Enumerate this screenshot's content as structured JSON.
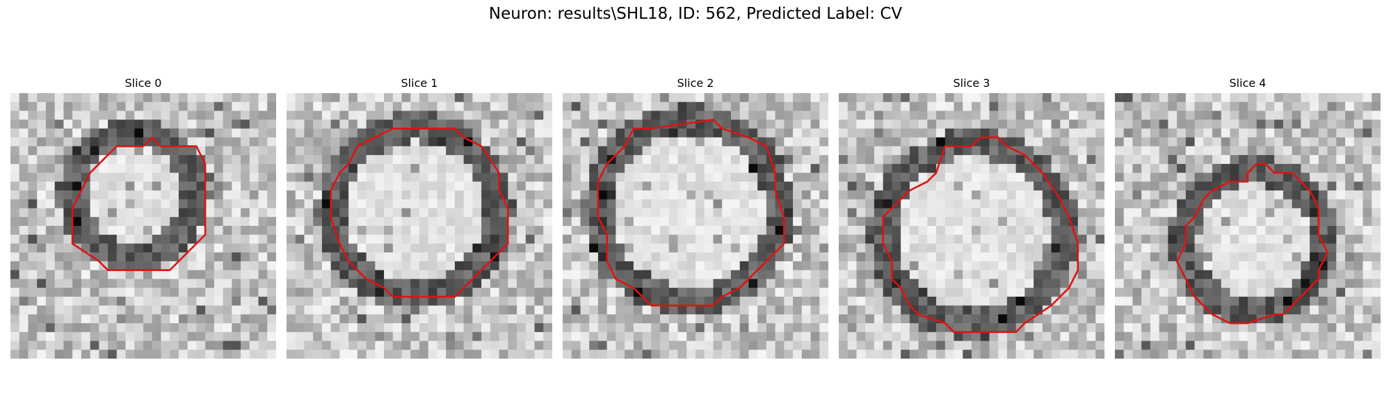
{
  "figure": {
    "title": "Neuron: results\\SHL18, ID: 562, Predicted Label: CV",
    "contour_color": "#e01212"
  },
  "panels": [
    {
      "title": "Slice 0",
      "seed": 11,
      "contour": [
        [
          16,
          5
        ],
        [
          17,
          6
        ],
        [
          21,
          6
        ],
        [
          22,
          8
        ],
        [
          22,
          16
        ],
        [
          21,
          17
        ],
        [
          18,
          20
        ],
        [
          11,
          20
        ],
        [
          10,
          19
        ],
        [
          7,
          17
        ],
        [
          7,
          13
        ],
        [
          8,
          11
        ],
        [
          9,
          9
        ],
        [
          10,
          8
        ],
        [
          11,
          7
        ],
        [
          12,
          6
        ],
        [
          15,
          6
        ]
      ]
    },
    {
      "title": "Slice 1",
      "seed": 23,
      "contour": [
        [
          14,
          4
        ],
        [
          19,
          4
        ],
        [
          20,
          5
        ],
        [
          22,
          6
        ],
        [
          24,
          9
        ],
        [
          24,
          11
        ],
        [
          25,
          13
        ],
        [
          25,
          17
        ],
        [
          23,
          19
        ],
        [
          21,
          21
        ],
        [
          20,
          22
        ],
        [
          19,
          23
        ],
        [
          12,
          23
        ],
        [
          11,
          22
        ],
        [
          9,
          21
        ],
        [
          8,
          20
        ],
        [
          7,
          19
        ],
        [
          6,
          17
        ],
        [
          5,
          14
        ],
        [
          5,
          11
        ],
        [
          6,
          9
        ],
        [
          7,
          8
        ],
        [
          8,
          6
        ],
        [
          10,
          5
        ],
        [
          12,
          4
        ]
      ]
    },
    {
      "title": "Slice 2",
      "seed": 37,
      "contour": [
        [
          17,
          3
        ],
        [
          18,
          4
        ],
        [
          21,
          5
        ],
        [
          23,
          6
        ],
        [
          24,
          9
        ],
        [
          24,
          11
        ],
        [
          25,
          14
        ],
        [
          25,
          17
        ],
        [
          24,
          18
        ],
        [
          22,
          20
        ],
        [
          20,
          22
        ],
        [
          18,
          23
        ],
        [
          17,
          24
        ],
        [
          10,
          24
        ],
        [
          8,
          22
        ],
        [
          6,
          21
        ],
        [
          5,
          19
        ],
        [
          5,
          16
        ],
        [
          4,
          14
        ],
        [
          4,
          10
        ],
        [
          5,
          8
        ],
        [
          6,
          7
        ],
        [
          7,
          6
        ],
        [
          8,
          4
        ],
        [
          10,
          4
        ]
      ]
    },
    {
      "title": "Slice 3",
      "seed": 53,
      "contour": [
        [
          16,
          5
        ],
        [
          18,
          5
        ],
        [
          19,
          6
        ],
        [
          21,
          7
        ],
        [
          23,
          9
        ],
        [
          25,
          12
        ],
        [
          26,
          14
        ],
        [
          27,
          17
        ],
        [
          27,
          20
        ],
        [
          26,
          22
        ],
        [
          24,
          24
        ],
        [
          21,
          26
        ],
        [
          20,
          27
        ],
        [
          13,
          27
        ],
        [
          12,
          26
        ],
        [
          9,
          25
        ],
        [
          8,
          24
        ],
        [
          7,
          22
        ],
        [
          6,
          21
        ],
        [
          6,
          19
        ],
        [
          5,
          17
        ],
        [
          5,
          14
        ],
        [
          6,
          13
        ],
        [
          8,
          11
        ],
        [
          10,
          10
        ],
        [
          11,
          9
        ],
        [
          12,
          6
        ],
        [
          15,
          6
        ]
      ]
    },
    {
      "title": "Slice 4",
      "seed": 71,
      "contour": [
        [
          16,
          8
        ],
        [
          17,
          8
        ],
        [
          18,
          9
        ],
        [
          20,
          9
        ],
        [
          21,
          10
        ],
        [
          22,
          11
        ],
        [
          23,
          13
        ],
        [
          23,
          16
        ],
        [
          24,
          18
        ],
        [
          23,
          20
        ],
        [
          23,
          21
        ],
        [
          22,
          22
        ],
        [
          21,
          23
        ],
        [
          19,
          25
        ],
        [
          18,
          25
        ],
        [
          15,
          26
        ],
        [
          13,
          26
        ],
        [
          11,
          25
        ],
        [
          10,
          24
        ],
        [
          9,
          23
        ],
        [
          8,
          21
        ],
        [
          7,
          19
        ],
        [
          8,
          17
        ],
        [
          8,
          15
        ],
        [
          9,
          14
        ],
        [
          10,
          12
        ],
        [
          11,
          11
        ],
        [
          13,
          10
        ],
        [
          15,
          10
        ],
        [
          15,
          9
        ]
      ]
    }
  ]
}
